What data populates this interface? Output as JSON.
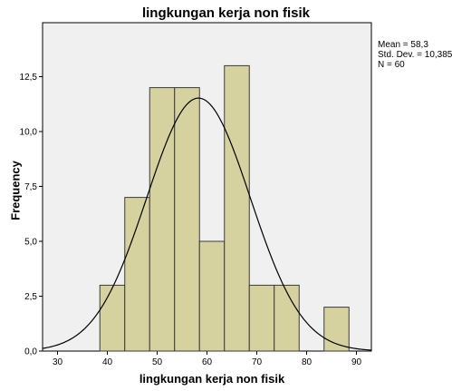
{
  "chart_data": {
    "type": "bar",
    "title": "lingkungan kerja non fisik",
    "xlabel": "lingkungan kerja non fisik",
    "ylabel": "Frequency",
    "xlim": [
      27,
      93
    ],
    "ylim": [
      0,
      15
    ],
    "bin_width": 5,
    "x_ticks": [
      30,
      40,
      50,
      60,
      70,
      80,
      90
    ],
    "x_tick_labels": [
      "30",
      "40",
      "50",
      "60",
      "70",
      "80",
      "90"
    ],
    "y_ticks": [
      0,
      2.5,
      5,
      7.5,
      10,
      12.5
    ],
    "y_tick_labels": [
      "0,0",
      "2,5",
      "5,0",
      "7,5",
      "10,0",
      "12,5"
    ],
    "bins": [
      {
        "start": 38.5,
        "end": 43.5,
        "count": 3
      },
      {
        "start": 43.5,
        "end": 48.5,
        "count": 7
      },
      {
        "start": 48.5,
        "end": 53.5,
        "count": 12
      },
      {
        "start": 53.5,
        "end": 58.5,
        "count": 12
      },
      {
        "start": 58.5,
        "end": 63.5,
        "count": 5
      },
      {
        "start": 63.5,
        "end": 68.5,
        "count": 13
      },
      {
        "start": 68.5,
        "end": 73.5,
        "count": 3
      },
      {
        "start": 73.5,
        "end": 78.5,
        "count": 3
      },
      {
        "start": 83.5,
        "end": 88.5,
        "count": 2
      }
    ],
    "normal_curve": {
      "mean": 58.3,
      "std_dev": 10.385,
      "n": 60
    },
    "grid": false,
    "legend": "none"
  },
  "stats": {
    "mean": "Mean = 58,3",
    "std_dev": "Std. Dev. = 10,385",
    "n": "N = 60"
  },
  "colors": {
    "plot_bg": "#f0f0f0",
    "bar_fill": "#d6d2a0",
    "bar_stroke": "#3a3a3a",
    "curve": "#000000"
  }
}
